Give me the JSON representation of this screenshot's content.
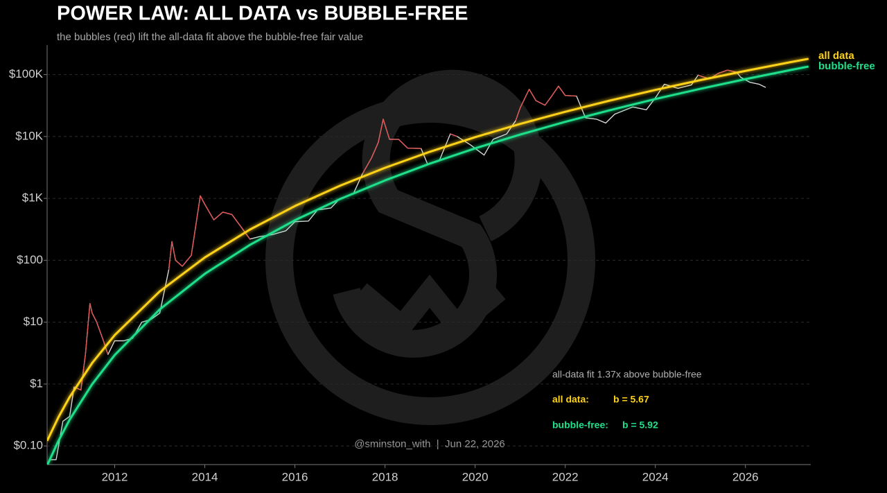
{
  "chart_data": {
    "type": "line",
    "title": "POWER LAW: ALL DATA vs BUBBLE-FREE",
    "subtitle": "the bubbles (red) lift the all-data fit above the bubble-free fair value",
    "log_y": true,
    "grid": true,
    "xlim": [
      2010.5,
      2027.45
    ],
    "xticks": [
      2012,
      2014,
      2016,
      2018,
      2020,
      2022,
      2024,
      2026
    ],
    "ylim": [
      0.05,
      300000
    ],
    "yticks": [
      {
        "value": 0.1,
        "label": "$0.10"
      },
      {
        "value": 1,
        "label": "$1"
      },
      {
        "value": 10,
        "label": "$10"
      },
      {
        "value": 100,
        "label": "$100"
      },
      {
        "value": 1000,
        "label": "$1K"
      },
      {
        "value": 10000,
        "label": "$10K"
      },
      {
        "value": 100000,
        "label": "$100K"
      }
    ],
    "series": [
      {
        "color": "#d8d8d8",
        "x": [
          2010.55,
          2010.7,
          2010.85,
          2011.0,
          2011.1,
          2011.25,
          2011.35,
          2011.45,
          2011.5,
          2011.6,
          2011.75,
          2011.85,
          2012.0,
          2012.2,
          2012.4,
          2012.6,
          2012.8,
          2013.0,
          2013.2,
          2013.27,
          2013.35,
          2013.5,
          2013.7,
          2013.9,
          2014.0,
          2014.2,
          2014.4,
          2014.6,
          2014.8,
          2015.0,
          2015.2,
          2015.5,
          2015.8,
          2016.0,
          2016.3,
          2016.5,
          2016.8,
          2017.0,
          2017.3,
          2017.5,
          2017.7,
          2017.85,
          2017.96,
          2018.1,
          2018.3,
          2018.5,
          2018.8,
          2018.95,
          2019.2,
          2019.45,
          2019.6,
          2019.9,
          2020.2,
          2020.4,
          2020.7,
          2020.9,
          2021.0,
          2021.2,
          2021.35,
          2021.55,
          2021.7,
          2021.85,
          2022.0,
          2022.25,
          2022.45,
          2022.7,
          2022.9,
          2023.1,
          2023.5,
          2023.8,
          2024.0,
          2024.2,
          2024.5,
          2024.8,
          2024.95,
          2025.2,
          2025.4,
          2025.6,
          2025.8,
          2025.9,
          2026.1,
          2026.3,
          2026.45
        ],
        "values": [
          0.06,
          0.06,
          0.25,
          0.3,
          0.9,
          0.8,
          3,
          20,
          14,
          10,
          5,
          3,
          5,
          5,
          5.5,
          10,
          11,
          14,
          70,
          200,
          100,
          80,
          120,
          1100,
          800,
          450,
          600,
          550,
          350,
          220,
          240,
          260,
          300,
          420,
          430,
          650,
          700,
          1000,
          1200,
          2500,
          4500,
          8000,
          19000,
          9000,
          9000,
          6500,
          6400,
          3500,
          4000,
          11000,
          10000,
          7300,
          5000,
          9000,
          11000,
          18000,
          29000,
          58000,
          38000,
          32000,
          45000,
          65000,
          46000,
          45000,
          20000,
          19000,
          16500,
          23000,
          30000,
          27000,
          42000,
          70000,
          60000,
          68000,
          98000,
          85000,
          105000,
          118000,
          110000,
          90000,
          75000,
          70000,
          62000
        ]
      },
      {
        "color": "#e05252",
        "x": [
          2010.55,
          2010.7,
          2010.85,
          2011.0,
          2011.1,
          2011.25,
          2011.35,
          2011.45,
          2011.5,
          2011.6,
          2011.75,
          2011.85,
          2012.0,
          2012.2,
          2012.4,
          2012.6,
          2012.8,
          2013.0,
          2013.2,
          2013.27,
          2013.35,
          2013.5,
          2013.7,
          2013.9,
          2014.0,
          2014.2,
          2014.4,
          2014.6,
          2014.8,
          2015.0,
          2015.2,
          2015.5,
          2015.8,
          2016.0,
          2016.3,
          2016.5,
          2016.8,
          2017.0,
          2017.3,
          2017.5,
          2017.7,
          2017.85,
          2017.96,
          2018.1,
          2018.3,
          2018.5,
          2018.8,
          2018.95,
          2019.2,
          2019.45,
          2019.6,
          2019.9,
          2020.2,
          2020.4,
          2020.7,
          2020.9,
          2021.0,
          2021.2,
          2021.35,
          2021.55,
          2021.7,
          2021.85,
          2022.0,
          2022.25,
          2022.45,
          2022.7,
          2022.9,
          2023.1,
          2023.5,
          2023.8,
          2024.0,
          2024.2,
          2024.5,
          2024.8,
          2024.95,
          2025.2,
          2025.4,
          2025.6,
          2025.8,
          2025.9,
          2026.1,
          2026.3,
          2026.45
        ],
        "values": [
          null,
          null,
          null,
          null,
          0.9,
          0.8,
          3,
          20,
          14,
          10,
          5,
          3,
          null,
          null,
          null,
          null,
          null,
          null,
          70,
          200,
          100,
          80,
          120,
          1100,
          800,
          450,
          600,
          550,
          350,
          220,
          null,
          null,
          null,
          null,
          null,
          null,
          null,
          null,
          null,
          2500,
          4500,
          8000,
          19000,
          9000,
          9000,
          6500,
          6400,
          null,
          null,
          11000,
          10000,
          null,
          null,
          null,
          null,
          18000,
          29000,
          58000,
          38000,
          32000,
          45000,
          65000,
          46000,
          45000,
          null,
          null,
          null,
          null,
          null,
          null,
          null,
          null,
          null,
          null,
          98000,
          85000,
          105000,
          118000,
          110000,
          null,
          null,
          null,
          null
        ]
      },
      {
        "name": "all data",
        "color": "#ffd21a",
        "width": 3,
        "x": [
          2010.5,
          2010.75,
          2011,
          2011.5,
          2012,
          2013,
          2014,
          2015,
          2016,
          2017,
          2018,
          2019,
          2020,
          2021,
          2022,
          2023,
          2024,
          2025,
          2026,
          2027,
          2027.4
        ],
        "values": [
          0.121,
          0.29,
          0.618,
          2.19,
          6.17,
          31.5,
          111,
          313,
          752,
          1600,
          3120,
          5680,
          9750,
          15960,
          25100,
          38200,
          56500,
          81500,
          114800,
          158900,
          180000
        ]
      },
      {
        "name": "bubble-free",
        "color": "#1fe08a",
        "width": 3,
        "x": [
          2010.5,
          2010.75,
          2011,
          2011.5,
          2012,
          2013,
          2014,
          2015,
          2016,
          2017,
          2018,
          2019,
          2020,
          2021,
          2022,
          2023,
          2024,
          2025,
          2026,
          2027,
          2027.4
        ],
        "values": [
          0.0485,
          0.12,
          0.266,
          0.995,
          2.94,
          16.1,
          60.4,
          177,
          443,
          975,
          1950,
          3660,
          6430,
          10740,
          17260,
          26700,
          40300,
          59000,
          84500,
          118600,
          135000
        ]
      }
    ],
    "annotations": {
      "ratio": "all-data fit 1.37x above bubble-free",
      "all_label": "all data:",
      "all_b": "b = 5.67",
      "free_label": "bubble-free:",
      "free_b": "b = 5.92",
      "credit": "@sminston_with  |  Jun 22, 2026"
    }
  }
}
